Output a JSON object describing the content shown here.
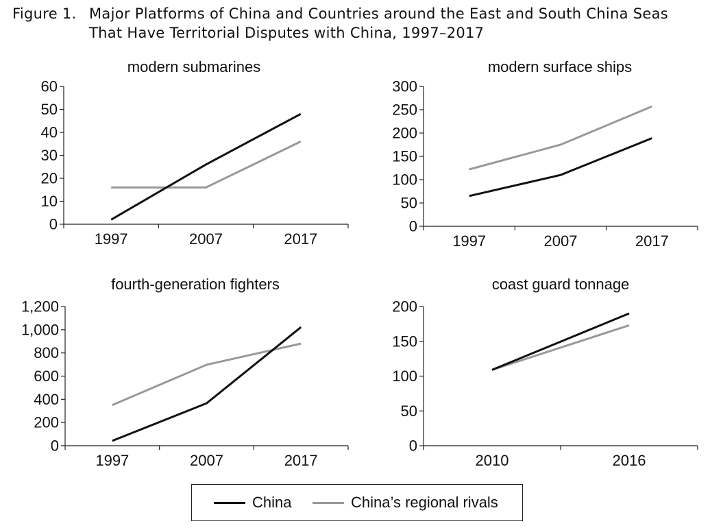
{
  "figure": {
    "label": "Figure 1.",
    "title_line1": "Major Platforms of China and Countries around the East and South China Seas",
    "title_line2": "That Have Territorial Disputes with China, 1997–2017"
  },
  "colors": {
    "china": "#111111",
    "rivals": "#999999",
    "axis": "#222222"
  },
  "legend": {
    "china": "China",
    "rivals": "China’s regional rivals"
  },
  "chart_data": [
    {
      "type": "line",
      "title": "modern submarines",
      "categories": [
        "1997",
        "2007",
        "2017"
      ],
      "ylim": [
        0,
        60
      ],
      "yticks": [
        0,
        10,
        20,
        30,
        40,
        50,
        60
      ],
      "ytick_labels": [
        "0",
        "10",
        "20",
        "30",
        "40",
        "50",
        "60"
      ],
      "series": [
        {
          "name": "China",
          "values": [
            2,
            26,
            48
          ]
        },
        {
          "name": "China’s regional rivals",
          "values": [
            16,
            16,
            36
          ]
        }
      ]
    },
    {
      "type": "line",
      "title": "modern surface ships",
      "categories": [
        "1997",
        "2007",
        "2017"
      ],
      "ylim": [
        0,
        300
      ],
      "yticks": [
        0,
        50,
        100,
        150,
        200,
        250,
        300
      ],
      "ytick_labels": [
        "0",
        "50",
        "100",
        "150",
        "200",
        "250",
        "300"
      ],
      "series": [
        {
          "name": "China",
          "values": [
            65,
            110,
            189
          ]
        },
        {
          "name": "China’s regional rivals",
          "values": [
            122,
            175,
            257
          ]
        }
      ]
    },
    {
      "type": "line",
      "title": "fourth-generation fighters",
      "categories": [
        "1997",
        "2007",
        "2017"
      ],
      "ylim": [
        0,
        1200
      ],
      "yticks": [
        0,
        200,
        400,
        600,
        800,
        1000,
        1200
      ],
      "ytick_labels": [
        "0",
        "200",
        "400",
        "600",
        "800",
        "1,000",
        "1,200"
      ],
      "series": [
        {
          "name": "China",
          "values": [
            42,
            366,
            1022
          ]
        },
        {
          "name": "China’s regional rivals",
          "values": [
            350,
            698,
            880
          ]
        }
      ]
    },
    {
      "type": "line",
      "title": "coast guard tonnage",
      "categories": [
        "2010",
        "2016"
      ],
      "ylim": [
        0,
        200
      ],
      "yticks": [
        0,
        50,
        100,
        150,
        200
      ],
      "ytick_labels": [
        "0",
        "50",
        "100",
        "150",
        "200"
      ],
      "series": [
        {
          "name": "China",
          "values": [
            109,
            190
          ]
        },
        {
          "name": "China’s regional rivals",
          "values": [
            109,
            173
          ]
        }
      ]
    }
  ]
}
